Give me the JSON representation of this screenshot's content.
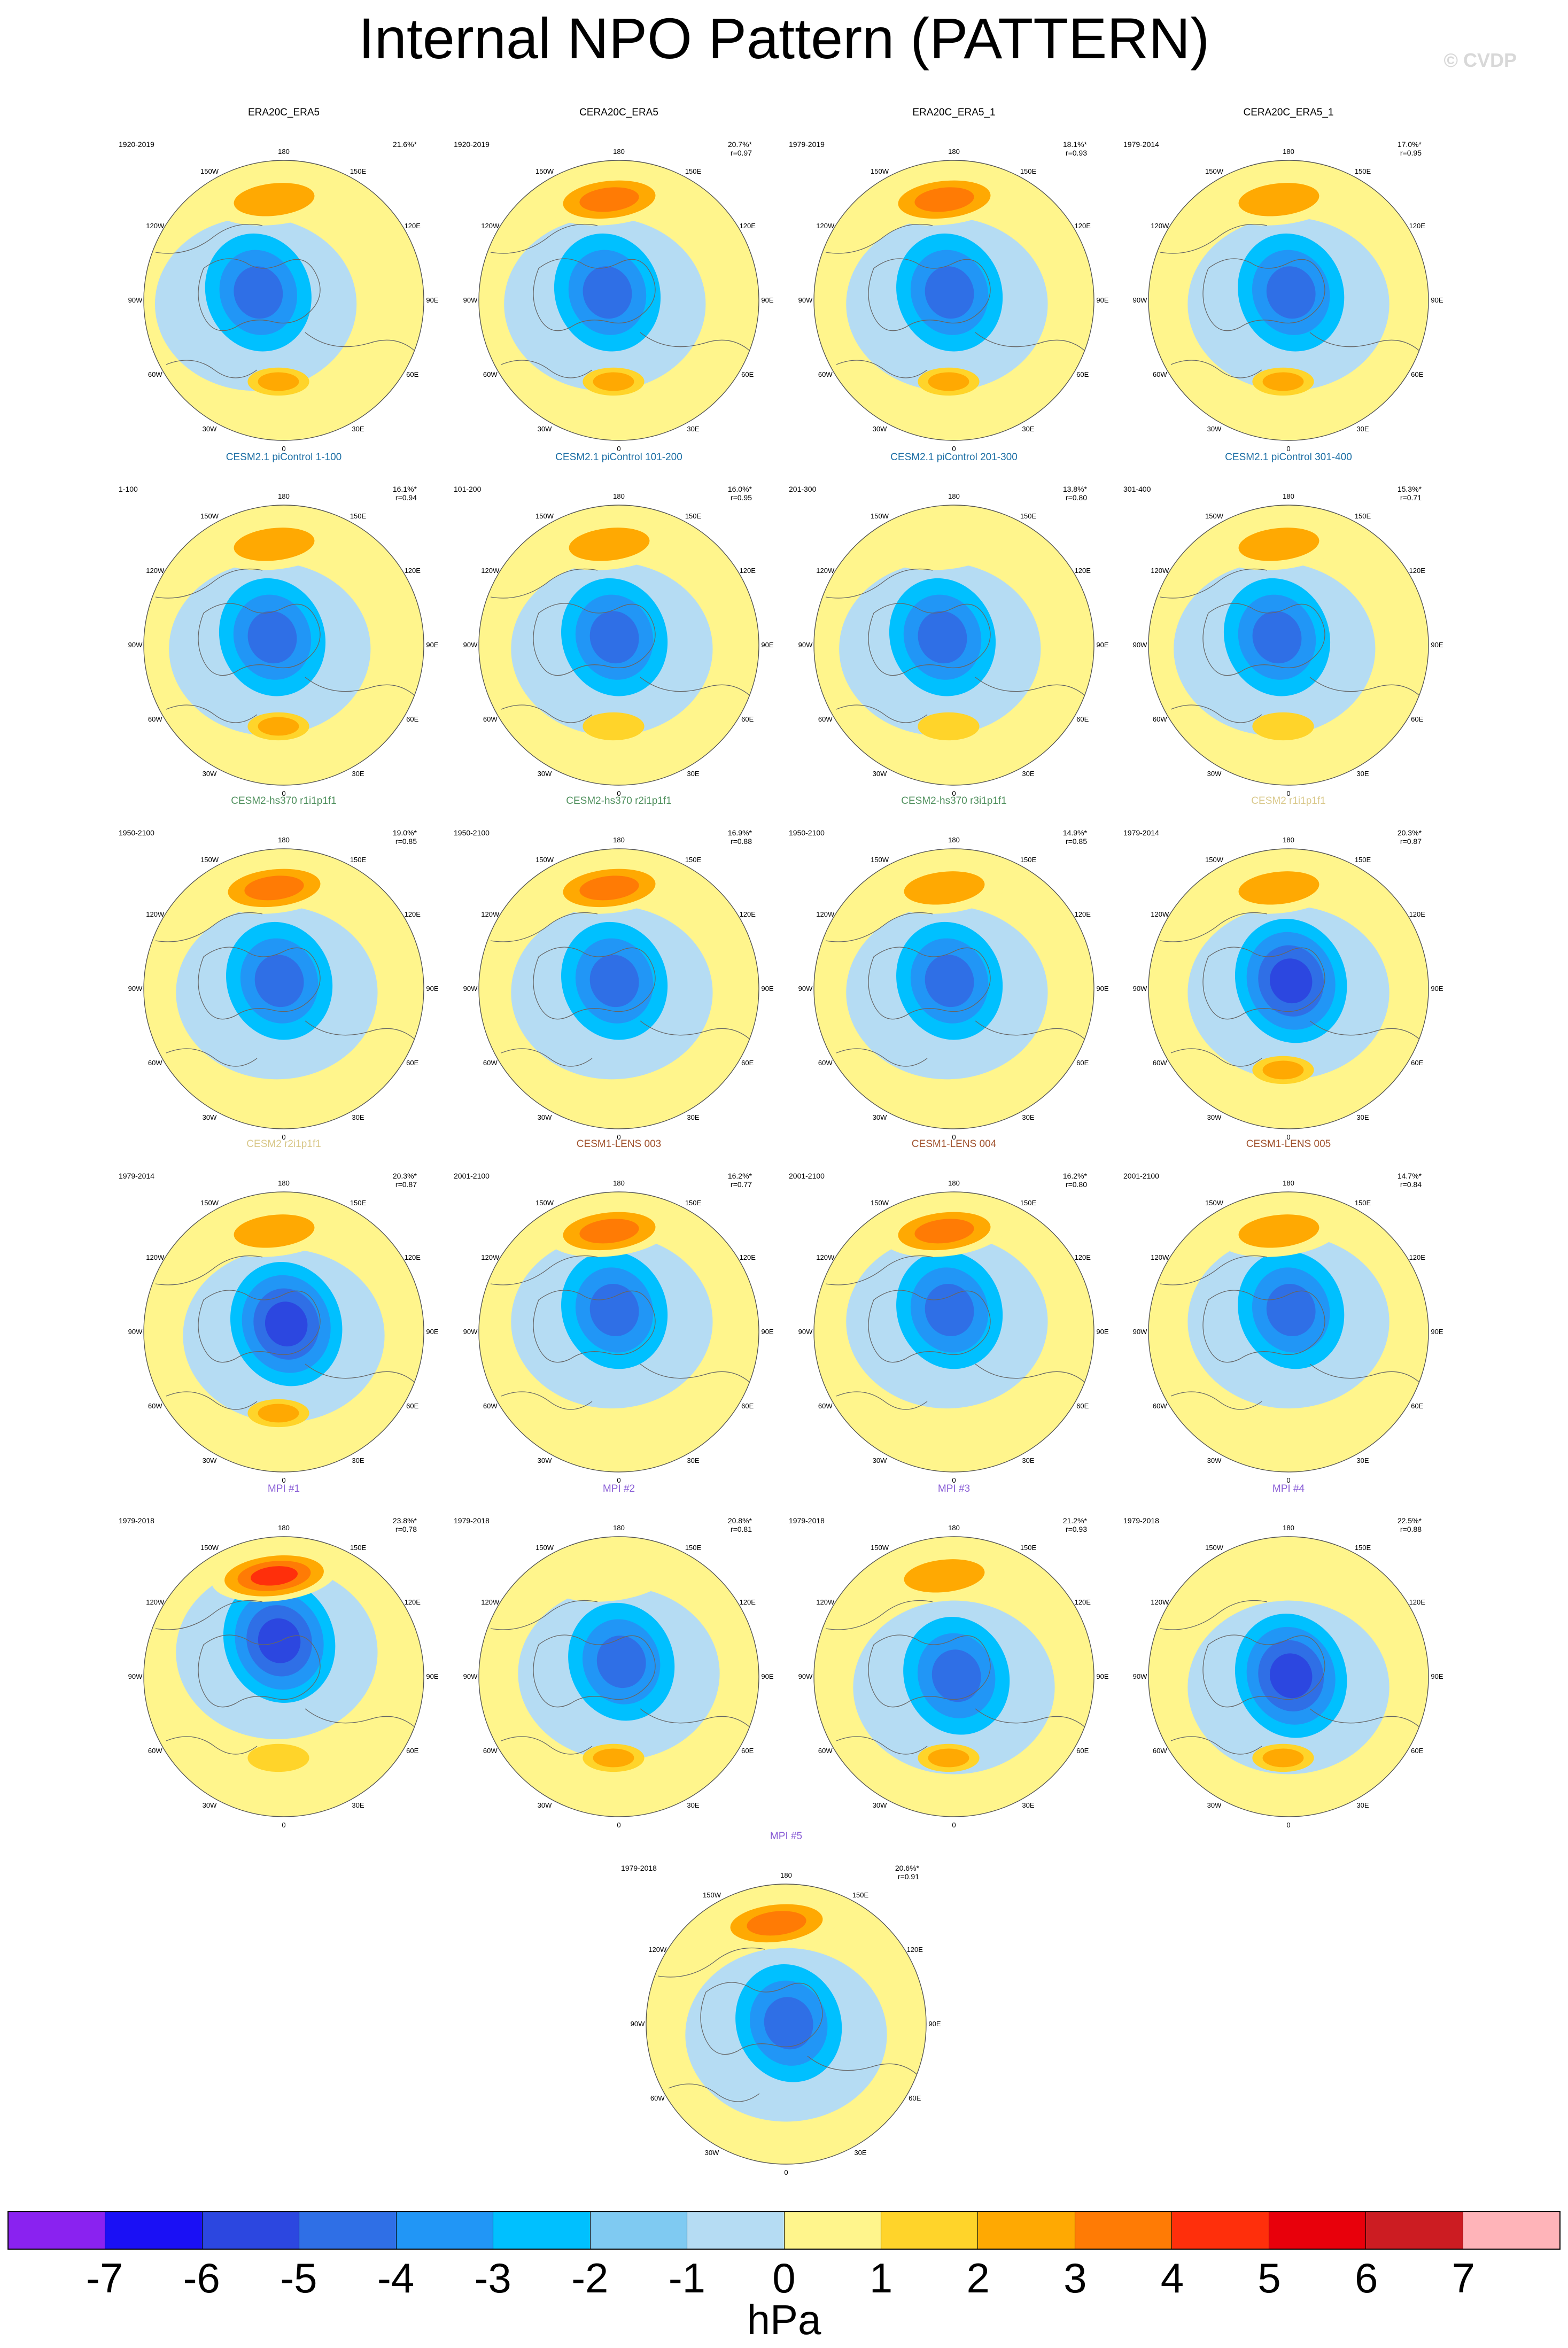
{
  "figure": {
    "title": "Internal NPO Pattern (PATTERN)",
    "watermark": "© CVDP",
    "units": "hPa"
  },
  "colorbar": {
    "labels": [
      "-7",
      "-6",
      "-5",
      "-4",
      "-3",
      "-2",
      "-1",
      "0",
      "1",
      "2",
      "3",
      "4",
      "5",
      "6",
      "7"
    ],
    "colors": [
      "#8a22f0",
      "#1a10f5",
      "#2c47e0",
      "#2f6fe6",
      "#2196f6",
      "#00c0ff",
      "#7fcaf2",
      "#b5dcf3",
      "#fff58c",
      "#ffd42a",
      "#ffa902",
      "#ff7b05",
      "#ff2f0b",
      "#e8000b",
      "#cc1c22",
      "#ffb4b9"
    ]
  },
  "longitude_labels": {
    "top": "180",
    "upper_left": "150W",
    "upper_right": "150E",
    "mid_upper_left": "120W",
    "mid_upper_right": "120E",
    "left": "90W",
    "right": "90E",
    "mid_lower_left": "60W",
    "mid_lower_right": "60E",
    "lower_left": "30W",
    "lower_right": "30E",
    "bottom": "0"
  },
  "panels": [
    {
      "title": "ERA20C_ERA5",
      "title_color": "#000000",
      "period": "1920-2019",
      "pct": "21.6%*",
      "corr": "",
      "pattern": {
        "pac_high": 2,
        "low": -3,
        "atl_high": 2,
        "low_offset": [
          -0.2,
          -0.05
        ]
      }
    },
    {
      "title": "CERA20C_ERA5",
      "title_color": "#000000",
      "period": "1920-2019",
      "pct": "20.7%*",
      "corr": "r=0.97",
      "pattern": {
        "pac_high": 3,
        "low": -3,
        "atl_high": 2,
        "low_offset": [
          -0.1,
          -0.05
        ]
      }
    },
    {
      "title": "ERA20C_ERA5_1",
      "title_color": "#000000",
      "period": "1979-2019",
      "pct": "18.1%*",
      "corr": "r=0.93",
      "pattern": {
        "pac_high": 3,
        "low": -3,
        "atl_high": 2,
        "low_offset": [
          -0.05,
          -0.05
        ]
      }
    },
    {
      "title": "CERA20C_ERA5_1",
      "title_color": "#000000",
      "period": "1979-2014",
      "pct": "17.0%*",
      "corr": "r=0.95",
      "pattern": {
        "pac_high": 2,
        "low": -3,
        "atl_high": 2,
        "low_offset": [
          0.0,
          -0.05
        ]
      }
    },
    {
      "title": "CESM2.1 piControl 1-100",
      "title_color": "#1d6fa5",
      "period": "1-100",
      "pct": "16.1%*",
      "corr": "r=0.94",
      "pattern": {
        "pac_high": 2,
        "low": -3,
        "atl_high": 2,
        "low_offset": [
          -0.1,
          -0.05
        ]
      }
    },
    {
      "title": "CESM2.1 piControl 101-200",
      "title_color": "#1d6fa5",
      "period": "101-200",
      "pct": "16.0%*",
      "corr": "r=0.95",
      "pattern": {
        "pac_high": 2,
        "low": -3,
        "atl_high": 1,
        "low_offset": [
          -0.05,
          -0.05
        ]
      }
    },
    {
      "title": "CESM2.1 piControl 201-300",
      "title_color": "#1d6fa5",
      "period": "201-300",
      "pct": "13.8%*",
      "corr": "r=0.80",
      "pattern": {
        "pac_high": 1,
        "low": -3,
        "atl_high": 1,
        "low_offset": [
          -0.1,
          -0.05
        ]
      }
    },
    {
      "title": "CESM2.1 piControl 301-400",
      "title_color": "#1d6fa5",
      "period": "301-400",
      "pct": "15.3%*",
      "corr": "r=0.71",
      "pattern": {
        "pac_high": 2,
        "low": -3,
        "atl_high": 1,
        "low_offset": [
          -0.1,
          -0.05
        ]
      }
    },
    {
      "title": "CESM2-hs370 r1i1p1f1",
      "title_color": "#4e8f5c",
      "period": "1950-2100",
      "pct": "19.0%*",
      "corr": "r=0.85",
      "pattern": {
        "pac_high": 3,
        "low": -3,
        "atl_high": 0,
        "low_offset": [
          -0.05,
          -0.05
        ]
      }
    },
    {
      "title": "CESM2-hs370 r2i1p1f1",
      "title_color": "#4e8f5c",
      "period": "1950-2100",
      "pct": "16.9%*",
      "corr": "r=0.88",
      "pattern": {
        "pac_high": 3,
        "low": -3,
        "atl_high": 0,
        "low_offset": [
          -0.05,
          -0.05
        ]
      }
    },
    {
      "title": "CESM2-hs370 r3i1p1f1",
      "title_color": "#4e8f5c",
      "period": "1950-2100",
      "pct": "14.9%*",
      "corr": "r=0.85",
      "pattern": {
        "pac_high": 2,
        "low": -3,
        "atl_high": 0,
        "low_offset": [
          -0.05,
          -0.05
        ]
      }
    },
    {
      "title": "CESM2 r1i1p1f1",
      "title_color": "#d9c88a",
      "period": "1979-2014",
      "pct": "20.3%*",
      "corr": "r=0.87",
      "pattern": {
        "pac_high": 2,
        "low": -4,
        "atl_high": 2,
        "low_offset": [
          0.0,
          -0.05
        ]
      }
    },
    {
      "title": "CESM2 r2i1p1f1",
      "title_color": "#d9c88a",
      "period": "1979-2014",
      "pct": "20.3%*",
      "corr": "r=0.87",
      "pattern": {
        "pac_high": 2,
        "low": -4,
        "atl_high": 2,
        "low_offset": [
          0.0,
          -0.05
        ]
      }
    },
    {
      "title": "CESM1-LENS 003",
      "title_color": "#a0522d",
      "period": "2001-2100",
      "pct": "16.2%*",
      "corr": "r=0.77",
      "pattern": {
        "pac_high": 3,
        "low": -3,
        "atl_high": 0,
        "low_offset": [
          -0.05,
          -0.15
        ]
      }
    },
    {
      "title": "CESM1-LENS 004",
      "title_color": "#a0522d",
      "period": "2001-2100",
      "pct": "16.2%*",
      "corr": "r=0.80",
      "pattern": {
        "pac_high": 3,
        "low": -3,
        "atl_high": 0,
        "low_offset": [
          -0.05,
          -0.15
        ]
      }
    },
    {
      "title": "CESM1-LENS 005",
      "title_color": "#a0522d",
      "period": "2001-2100",
      "pct": "14.7%*",
      "corr": "r=0.84",
      "pattern": {
        "pac_high": 2,
        "low": -3,
        "atl_high": 0,
        "low_offset": [
          0.0,
          -0.15
        ]
      }
    },
    {
      "title": "MPI #1",
      "title_color": "#8a5fd6",
      "period": "1979-2018",
      "pct": "23.8%*",
      "corr": "r=0.78",
      "pattern": {
        "pac_high": 4,
        "low": -4,
        "atl_high": 1,
        "low_offset": [
          -0.05,
          -0.25
        ]
      }
    },
    {
      "title": "MPI #2",
      "title_color": "#8a5fd6",
      "period": "1979-2018",
      "pct": "20.8%*",
      "corr": "r=0.81",
      "pattern": {
        "pac_high": 1,
        "low": -3,
        "atl_high": 2,
        "low_offset": [
          0.0,
          -0.1
        ]
      }
    },
    {
      "title": "MPI #3",
      "title_color": "#8a5fd6",
      "period": "1979-2018",
      "pct": "21.2%*",
      "corr": "r=0.93",
      "pattern": {
        "pac_high": 2,
        "low": -3,
        "atl_high": 2,
        "low_offset": [
          0.0,
          0.0
        ]
      }
    },
    {
      "title": "MPI #4",
      "title_color": "#8a5fd6",
      "period": "1979-2018",
      "pct": "22.5%*",
      "corr": "r=0.88",
      "pattern": {
        "pac_high": 1,
        "low": -4,
        "atl_high": 2,
        "low_offset": [
          0.0,
          0.0
        ]
      }
    },
    {
      "title": "MPI #5",
      "title_color": "#8a5fd6",
      "period": "1979-2018",
      "pct": "20.6%*",
      "corr": "r=0.91",
      "pattern": {
        "pac_high": 3,
        "low": -3,
        "atl_high": 0,
        "low_offset": [
          0.0,
          0.0
        ]
      }
    }
  ]
}
